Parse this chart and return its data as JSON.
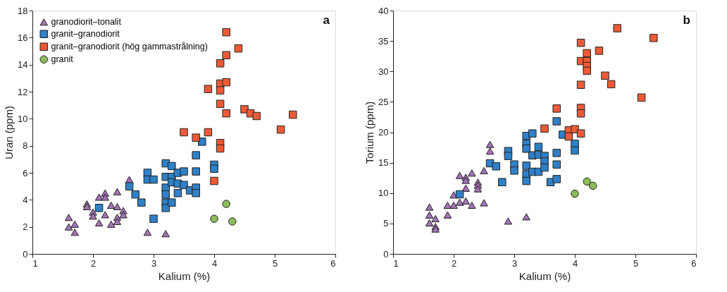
{
  "chart_data": [
    {
      "type": "scatter",
      "annotations": [
        "a"
      ],
      "xlabel": "Kalium (%)",
      "ylabel": "Uran (ppm)",
      "xlim": [
        1,
        6
      ],
      "ylim": [
        0,
        18
      ],
      "xticks": [
        1,
        2,
        3,
        4,
        5,
        6
      ],
      "yticks": [
        0,
        2,
        4,
        6,
        8,
        10,
        12,
        14,
        16,
        18
      ],
      "grid": false,
      "legend": "top left",
      "series": [
        {
          "name": "granodiorit–tonalit",
          "color": "#a373b3",
          "marker": "triangle",
          "x": [
            1.6,
            1.6,
            1.7,
            1.7,
            1.9,
            1.9,
            2.0,
            2.0,
            2.1,
            2.2,
            2.2,
            2.1,
            2.2,
            2.3,
            2.3,
            2.4,
            2.4,
            2.4,
            2.4,
            2.5,
            2.5,
            2.6,
            2.9,
            3.2
          ],
          "values": [
            2.7,
            2.0,
            2.2,
            1.6,
            3.7,
            3.5,
            3.1,
            2.8,
            4.2,
            4.5,
            4.2,
            2.3,
            2.9,
            3.6,
            2.2,
            4.6,
            3.5,
            2.7,
            2.4,
            3.2,
            2.9,
            5.5,
            1.6,
            1.5
          ]
        },
        {
          "name": "granit–granodiorit",
          "color": "#2f80c6",
          "marker": "square",
          "x": [
            2.1,
            2.6,
            2.7,
            2.8,
            2.9,
            2.9,
            3.0,
            3.0,
            3.2,
            3.2,
            3.2,
            3.2,
            3.2,
            3.2,
            3.3,
            3.3,
            3.3,
            3.3,
            3.4,
            3.4,
            3.4,
            3.5,
            3.5,
            3.6,
            3.7,
            3.7,
            3.7,
            3.7,
            3.8,
            4.0,
            4.0
          ],
          "values": [
            3.4,
            5.0,
            4.4,
            3.8,
            6.0,
            5.5,
            5.5,
            2.6,
            6.7,
            5.7,
            4.9,
            4.4,
            3.8,
            3.4,
            6.5,
            5.7,
            5.3,
            3.8,
            6.0,
            5.2,
            4.5,
            6.1,
            5.1,
            4.7,
            7.3,
            6.1,
            4.9,
            4.5,
            8.3,
            6.6,
            6.3
          ]
        },
        {
          "name": "granit–granodiorit (hög gammastrålning)",
          "color": "#ef5a36",
          "marker": "square",
          "x": [
            4.2,
            4.4,
            4.2,
            4.1,
            4.1,
            4.2,
            3.9,
            4.1,
            4.1,
            4.2,
            4.5,
            4.6,
            4.7,
            5.3,
            5.1,
            3.5,
            3.9,
            3.7,
            4.1,
            4.1,
            4.0
          ],
          "values": [
            16.4,
            15.2,
            14.7,
            14.1,
            12.6,
            12.7,
            12.2,
            12.1,
            11.1,
            10.4,
            10.7,
            10.4,
            10.2,
            10.3,
            9.2,
            9.0,
            9.0,
            8.6,
            8.2,
            7.8,
            5.4
          ]
        },
        {
          "name": "granit",
          "color": "#8cbc5a",
          "marker": "circle",
          "x": [
            4.2,
            4.0,
            4.3
          ],
          "values": [
            3.7,
            2.6,
            2.4
          ]
        }
      ]
    },
    {
      "type": "scatter",
      "annotations": [
        "b"
      ],
      "xlabel": "Kalium (%)",
      "ylabel": "Torium (ppm)",
      "xlim": [
        1,
        6
      ],
      "ylim": [
        0,
        40
      ],
      "xticks": [
        1,
        2,
        3,
        4,
        5,
        6
      ],
      "yticks": [
        0,
        5,
        10,
        15,
        20,
        25,
        30,
        35,
        40
      ],
      "grid": false,
      "legend": "top left",
      "series": [
        {
          "name": "granodiorit–tonalit",
          "color": "#a373b3",
          "marker": "triangle",
          "x": [
            1.6,
            1.6,
            1.6,
            1.7,
            1.7,
            1.7,
            1.9,
            1.9,
            2.0,
            2.0,
            2.1,
            2.1,
            2.2,
            2.2,
            2.2,
            2.2,
            2.3,
            2.3,
            2.4,
            2.4,
            2.4,
            2.5,
            2.5,
            2.6,
            2.6,
            2.9,
            3.2
          ],
          "values": [
            7.7,
            6.4,
            5.1,
            5.8,
            4.5,
            4.1,
            8.0,
            6.4,
            9.7,
            8.0,
            12.9,
            8.5,
            12.6,
            12.1,
            10.8,
            8.7,
            13.3,
            8.0,
            11.8,
            11.3,
            10.7,
            13.7,
            8.4,
            18.0,
            16.9,
            5.4,
            6.1
          ]
        },
        {
          "name": "granit–granodiorit",
          "color": "#2f80c6",
          "marker": "square",
          "x": [
            2.1,
            2.6,
            2.7,
            2.8,
            2.9,
            2.9,
            3.0,
            3.0,
            3.2,
            3.2,
            3.2,
            3.2,
            3.2,
            3.2,
            3.3,
            3.3,
            3.3,
            3.4,
            3.4,
            3.4,
            3.5,
            3.5,
            3.5,
            3.6,
            3.7,
            3.7,
            3.7,
            3.7,
            3.8,
            4.0,
            4.0
          ],
          "values": [
            9.8,
            14.9,
            14.4,
            11.8,
            16.9,
            16.1,
            14.7,
            13.7,
            19.4,
            18.1,
            17.3,
            14.5,
            13.1,
            12.0,
            19.8,
            16.2,
            13.5,
            17.6,
            16.3,
            13.5,
            16.1,
            15.2,
            14.2,
            11.8,
            16.6,
            14.7,
            12.3,
            21.8,
            19.6,
            18.1,
            17.0
          ]
        },
        {
          "name": "granit–granodiorit (hög gammastrålning)",
          "color": "#ef5a36",
          "marker": "square",
          "x": [
            4.7,
            5.3,
            4.1,
            4.4,
            4.2,
            4.1,
            4.2,
            4.2,
            4.2,
            4.5,
            4.6,
            4.1,
            5.1,
            3.7,
            4.1,
            4.1,
            3.5,
            3.9,
            4.0,
            3.9,
            4.1
          ],
          "values": [
            37.1,
            35.5,
            34.7,
            33.4,
            33.0,
            31.7,
            31.7,
            30.9,
            30.1,
            29.3,
            27.9,
            27.8,
            25.7,
            23.9,
            24.0,
            23.1,
            20.6,
            20.3,
            20.5,
            19.3,
            19.8
          ]
        },
        {
          "name": "granit",
          "color": "#8cbc5a",
          "marker": "circle",
          "x": [
            4.2,
            4.3,
            4.0
          ],
          "values": [
            11.9,
            11.2,
            9.9
          ]
        }
      ]
    }
  ]
}
